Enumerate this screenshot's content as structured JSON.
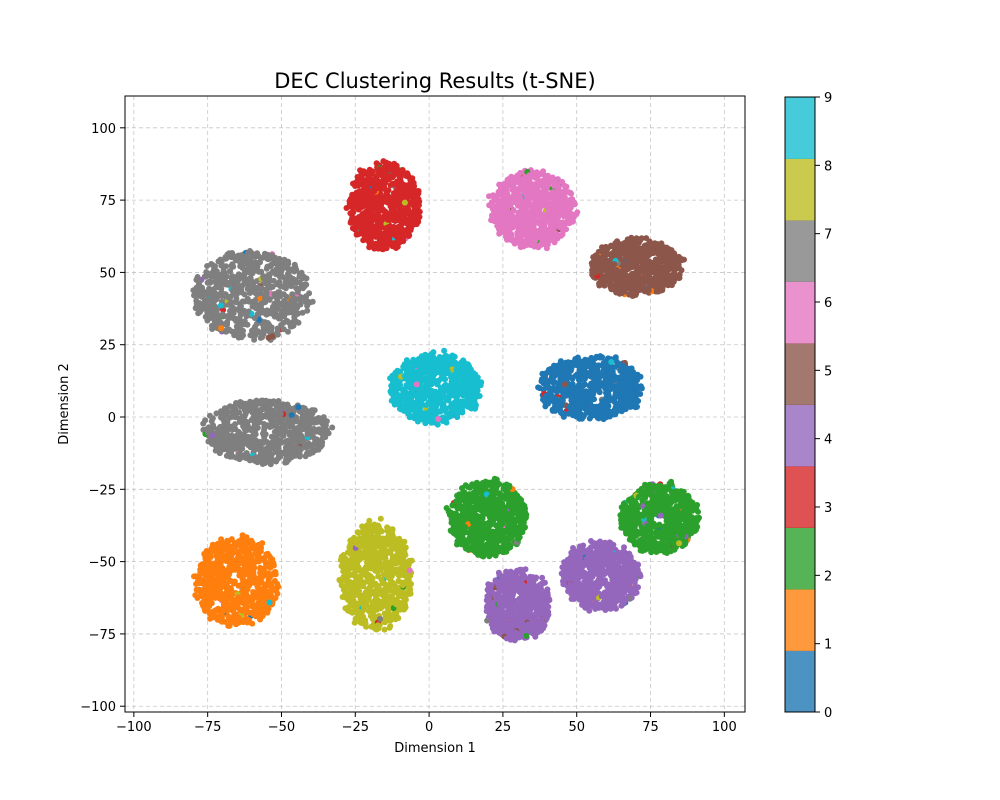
{
  "chart_data": {
    "type": "scatter",
    "title": "DEC Clustering Results (t-SNE)",
    "xlabel": "Dimension 1",
    "ylabel": "Dimension 2",
    "xlim": [
      -103,
      107
    ],
    "ylim": [
      -102,
      111
    ],
    "xticks": [
      -100,
      -75,
      -50,
      -25,
      0,
      25,
      50,
      75,
      100
    ],
    "yticks": [
      -100,
      -75,
      -50,
      -25,
      0,
      25,
      50,
      75,
      100
    ],
    "grid": true,
    "grid_style": "dashed",
    "colorbar": {
      "label": "",
      "ticks": [
        0,
        1,
        2,
        3,
        4,
        5,
        6,
        7,
        8,
        9
      ],
      "range": [
        0,
        9
      ],
      "colormap": "tab10",
      "colors": [
        "#1f77b4",
        "#ff7f0e",
        "#2ca02c",
        "#d62728",
        "#9467bd",
        "#8c564b",
        "#e377c2",
        "#7f7f7f",
        "#bcbd22",
        "#17becf"
      ]
    },
    "clusters": [
      {
        "label": 0,
        "center": [
          55,
          10
        ],
        "spread": [
          16,
          10
        ]
      },
      {
        "label": 1,
        "center": [
          -65,
          -57
        ],
        "spread": [
          13,
          14
        ]
      },
      {
        "label": 2,
        "center": [
          20,
          -35
        ],
        "spread": [
          12,
          12
        ]
      },
      {
        "label": 2,
        "center": [
          78,
          -35
        ],
        "spread": [
          12,
          11
        ]
      },
      {
        "label": 3,
        "center": [
          -15,
          73
        ],
        "spread": [
          11,
          14
        ]
      },
      {
        "label": 4,
        "center": [
          30,
          -65
        ],
        "spread": [
          10,
          11
        ]
      },
      {
        "label": 4,
        "center": [
          58,
          -55
        ],
        "spread": [
          12,
          11
        ]
      },
      {
        "label": 5,
        "center": [
          70,
          52
        ],
        "spread": [
          14,
          9
        ]
      },
      {
        "label": 6,
        "center": [
          35,
          72
        ],
        "spread": [
          13,
          12
        ]
      },
      {
        "label": 7,
        "center": [
          -60,
          42
        ],
        "spread": [
          18,
          14
        ]
      },
      {
        "label": 7,
        "center": [
          -55,
          -5
        ],
        "spread": [
          19,
          10
        ]
      },
      {
        "label": 8,
        "center": [
          -18,
          -55
        ],
        "spread": [
          11,
          17
        ]
      },
      {
        "label": 9,
        "center": [
          2,
          10
        ],
        "spread": [
          14,
          11
        ]
      }
    ]
  }
}
